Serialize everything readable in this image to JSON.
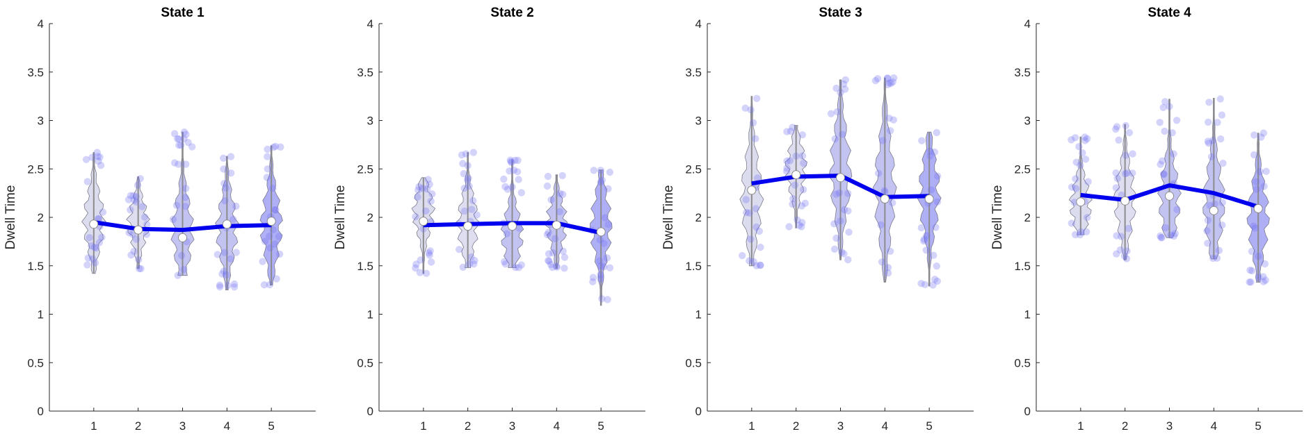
{
  "figure": {
    "colors": {
      "violin_light": "#d6d6ec",
      "violin_mid": "#b9b9f0",
      "violin_dark": "#a6a6f4",
      "violin_edge": "#7a7a8c",
      "scatter": "#6f6ff2",
      "mean_line": "#0000ee",
      "median_marker_fill": "#ffffff",
      "whisker": "#8c8c8c",
      "axis": "#262626"
    }
  },
  "chart_data": [
    {
      "type": "violin",
      "title": "State 1",
      "xlabel": "",
      "ylabel": "Dwell Time",
      "categories": [
        "1",
        "2",
        "3",
        "4",
        "5"
      ],
      "xlim": [
        0,
        6
      ],
      "ylim": [
        0,
        4
      ],
      "yticks": [
        "0",
        "0.5",
        "1",
        "1.5",
        "2",
        "2.5",
        "3",
        "3.5",
        "4"
      ],
      "grid": false,
      "series": [
        {
          "values": [
            1.95,
            1.88,
            1.87,
            1.91,
            1.92
          ],
          "medians": [
            1.93,
            1.87,
            1.79,
            1.93,
            1.96
          ],
          "ranges": [
            [
              1.42,
              2.67
            ],
            [
              1.47,
              2.42
            ],
            [
              1.4,
              2.88
            ],
            [
              1.25,
              2.63
            ],
            [
              1.3,
              2.74
            ]
          ]
        }
      ]
    },
    {
      "type": "violin",
      "title": "State 2",
      "xlabel": "",
      "ylabel": "Dwell Time",
      "categories": [
        "1",
        "2",
        "3",
        "4",
        "5"
      ],
      "xlim": [
        0,
        6
      ],
      "ylim": [
        0,
        4
      ],
      "yticks": [
        "0",
        "0.5",
        "1",
        "1.5",
        "2",
        "2.5",
        "3",
        "3.5",
        "4"
      ],
      "grid": false,
      "series": [
        {
          "values": [
            1.92,
            1.93,
            1.94,
            1.94,
            1.84
          ],
          "medians": [
            1.96,
            1.91,
            1.91,
            1.92,
            1.85
          ],
          "ranges": [
            [
              1.42,
              2.41
            ],
            [
              1.48,
              2.67
            ],
            [
              1.48,
              2.59
            ],
            [
              1.47,
              2.44
            ],
            [
              1.09,
              2.49
            ]
          ]
        }
      ]
    },
    {
      "type": "violin",
      "title": "State 3",
      "xlabel": "",
      "ylabel": "Dwell Time",
      "categories": [
        "1",
        "2",
        "3",
        "4",
        "5"
      ],
      "xlim": [
        0,
        6
      ],
      "ylim": [
        0,
        4
      ],
      "yticks": [
        "0",
        "0.5",
        "1",
        "1.5",
        "2",
        "2.5",
        "3",
        "3.5",
        "4"
      ],
      "grid": false,
      "series": [
        {
          "values": [
            2.35,
            2.42,
            2.43,
            2.21,
            2.22
          ],
          "medians": [
            2.28,
            2.44,
            2.41,
            2.19,
            2.19
          ],
          "ranges": [
            [
              1.5,
              3.25
            ],
            [
              1.89,
              2.95
            ],
            [
              1.56,
              3.42
            ],
            [
              1.33,
              3.44
            ],
            [
              1.29,
              2.88
            ]
          ]
        }
      ]
    },
    {
      "type": "violin",
      "title": "State 4",
      "xlabel": "",
      "ylabel": "Dwell Time",
      "categories": [
        "1",
        "2",
        "3",
        "4",
        "5"
      ],
      "xlim": [
        0,
        6
      ],
      "ylim": [
        0,
        4
      ],
      "yticks": [
        "0",
        "0.5",
        "1",
        "1.5",
        "2",
        "2.5",
        "3",
        "3.5",
        "4"
      ],
      "grid": false,
      "series": [
        {
          "values": [
            2.23,
            2.18,
            2.33,
            2.25,
            2.11
          ],
          "medians": [
            2.16,
            2.17,
            2.22,
            2.07,
            2.09
          ],
          "ranges": [
            [
              1.82,
              2.83
            ],
            [
              1.56,
              2.96
            ],
            [
              1.79,
              3.22
            ],
            [
              1.57,
              3.23
            ],
            [
              1.33,
              2.87
            ]
          ]
        }
      ]
    }
  ]
}
